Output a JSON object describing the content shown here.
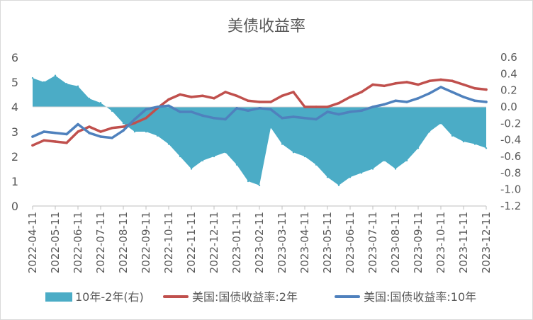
{
  "chart_data": {
    "type": "line",
    "title": "美债收益率",
    "left_axis": {
      "min": 0,
      "max": 6,
      "step": 1,
      "ticks": [
        "0",
        "1",
        "2",
        "3",
        "4",
        "5",
        "6"
      ]
    },
    "right_axis": {
      "min": -1.2,
      "max": 0.6,
      "step": 0.2,
      "ticks": [
        "-1.2",
        "-1.0",
        "-0.8",
        "-0.6",
        "-0.4",
        "-0.2",
        "0.0",
        "0.2",
        "0.4",
        "0.6"
      ]
    },
    "x_labels": [
      "2022-04-11",
      "2022-05-11",
      "2022-06-11",
      "2022-07-11",
      "2022-08-11",
      "2022-09-11",
      "2022-10-11",
      "2022-11-11",
      "2022-12-11",
      "2023-01-11",
      "2023-02-11",
      "2023-03-11",
      "2023-04-11",
      "2023-05-11",
      "2023-06-11",
      "2023-07-11",
      "2023-08-11",
      "2023-09-11",
      "2023-10-11",
      "2023-11-11",
      "2023-12-11"
    ],
    "x_index": [
      0,
      0.5,
      1,
      1.5,
      2,
      2.5,
      3,
      3.5,
      4,
      4.5,
      5,
      5.5,
      6,
      6.5,
      7,
      7.5,
      8,
      8.5,
      9,
      9.5,
      10,
      10.5,
      11,
      11.5,
      12,
      12.5,
      13,
      13.5,
      14,
      14.5,
      15,
      15.5,
      16,
      16.5,
      17,
      17.5,
      18,
      18.5,
      19,
      19.5,
      20
    ],
    "series": [
      {
        "name": "10年-2年(右)",
        "axis": "right",
        "kind": "area",
        "color": "#4bacc6",
        "values": [
          0.35,
          0.3,
          0.38,
          0.28,
          0.25,
          0.1,
          0.05,
          -0.05,
          -0.2,
          -0.3,
          -0.3,
          -0.35,
          -0.45,
          -0.6,
          -0.75,
          -0.65,
          -0.6,
          -0.55,
          -0.7,
          -0.9,
          -0.95,
          -0.25,
          -0.45,
          -0.55,
          -0.6,
          -0.7,
          -0.85,
          -0.95,
          -0.85,
          -0.8,
          -0.75,
          -0.65,
          -0.75,
          -0.65,
          -0.5,
          -0.3,
          -0.2,
          -0.35,
          -0.42,
          -0.45,
          -0.5
        ]
      },
      {
        "name": "美国:国债收益率:2年",
        "axis": "left",
        "kind": "line",
        "color": "#c0504d",
        "values": [
          2.45,
          2.65,
          2.6,
          2.55,
          3.0,
          3.2,
          3.0,
          3.15,
          3.2,
          3.35,
          3.55,
          3.95,
          4.3,
          4.5,
          4.4,
          4.45,
          4.35,
          4.6,
          4.45,
          4.25,
          4.2,
          4.2,
          4.45,
          4.6,
          4.0,
          4.0,
          4.0,
          4.15,
          4.4,
          4.6,
          4.9,
          4.85,
          4.95,
          5.0,
          4.9,
          5.05,
          5.1,
          5.05,
          4.9,
          4.75,
          4.7
        ]
      },
      {
        "name": "美国:国债收益率:10年",
        "axis": "left",
        "kind": "line",
        "color": "#4f81bd",
        "values": [
          2.8,
          3.0,
          2.95,
          2.9,
          3.3,
          2.95,
          2.8,
          2.75,
          3.05,
          3.5,
          3.9,
          4.0,
          4.05,
          3.8,
          3.8,
          3.65,
          3.55,
          3.5,
          3.95,
          3.85,
          3.95,
          3.9,
          3.55,
          3.6,
          3.55,
          3.5,
          3.8,
          3.7,
          3.8,
          3.85,
          4.0,
          4.1,
          4.25,
          4.2,
          4.35,
          4.55,
          4.8,
          4.6,
          4.4,
          4.25,
          4.2
        ]
      }
    ],
    "legend": [
      {
        "label": "10年-2年(右)",
        "style": "area",
        "color": "#4bacc6"
      },
      {
        "label": "美国:国债收益率:2年",
        "style": "line",
        "color": "#c0504d"
      },
      {
        "label": "美国:国债收益率:10年",
        "style": "line",
        "color": "#4f81bd"
      }
    ],
    "legend_position": "bottom",
    "grid": false
  }
}
